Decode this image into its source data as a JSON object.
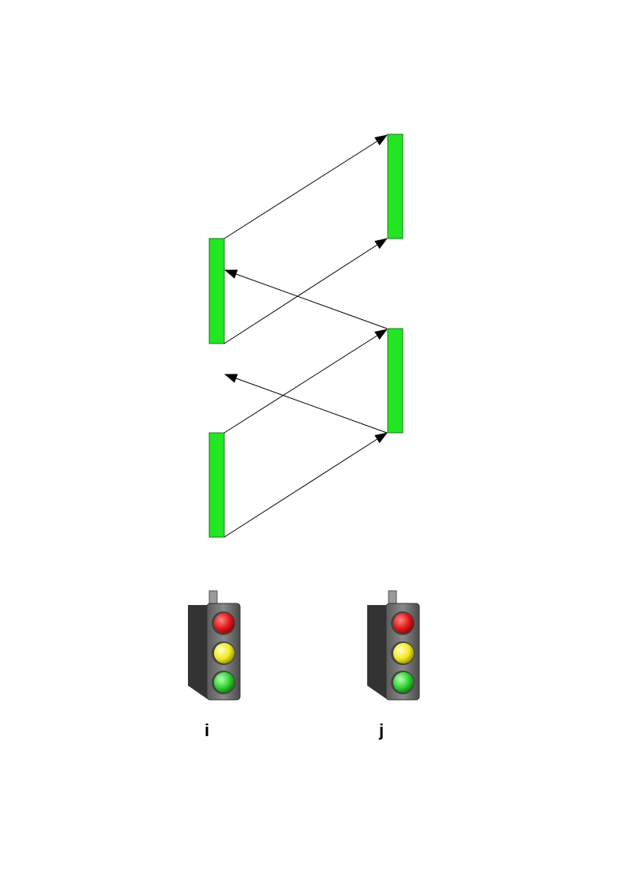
{
  "colors": {
    "block_fill": "#22e622",
    "block_stroke": "#1a7a1a",
    "arrow": "#000000",
    "signal_body": "#6f6f6f",
    "signal_red": "#e01818",
    "signal_yellow": "#f2ea22",
    "signal_green": "#30d230"
  },
  "nodes": [
    {
      "id": "i",
      "label": "i",
      "icon": "traffic-light-icon"
    },
    {
      "id": "j",
      "label": "j",
      "icon": "traffic-light-icon"
    }
  ],
  "arrows": [
    {
      "from": "i",
      "to": "j",
      "kind": "data"
    },
    {
      "from": "i",
      "to": "j",
      "kind": "data"
    },
    {
      "from": "j",
      "to": "i",
      "kind": "ack"
    },
    {
      "from": "i",
      "to": "j",
      "kind": "data"
    },
    {
      "from": "i",
      "to": "j",
      "kind": "data"
    },
    {
      "from": "j",
      "to": "i",
      "kind": "ack"
    }
  ]
}
